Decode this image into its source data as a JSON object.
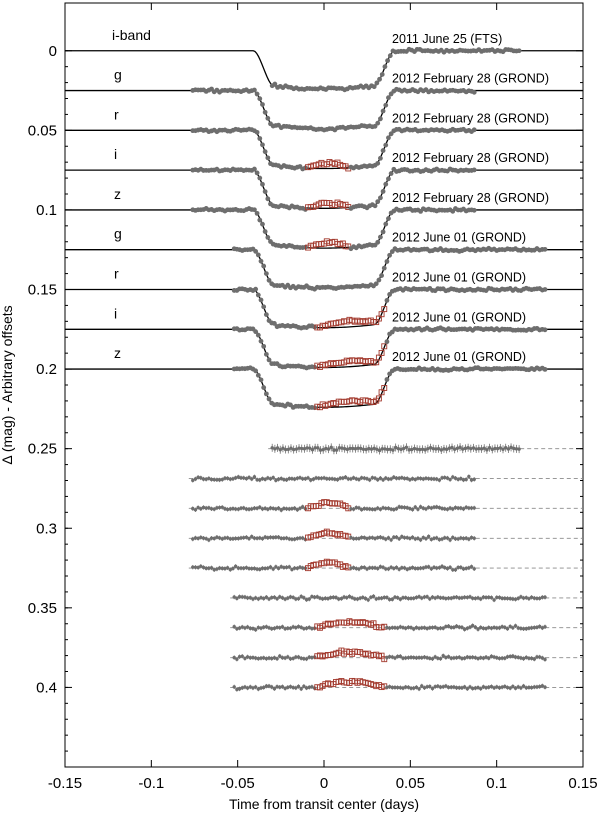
{
  "chart_data": {
    "type": "scatter",
    "title": "",
    "xlabel": "Time from transit center (days)",
    "ylabel": "Δ (mag) - Arbitrary offsets",
    "xlim": [
      -0.15,
      0.15
    ],
    "ylim": [
      0.45,
      -0.03
    ],
    "y_inverted": true,
    "x_ticks": [
      -0.15,
      -0.1,
      -0.05,
      0,
      0.05,
      0.1,
      0.15
    ],
    "x_tick_labels": [
      "-0.15",
      "-0.1",
      "-0.05",
      "0",
      "0.05",
      "0.1",
      "0.15"
    ],
    "y_ticks": [
      0,
      0.05,
      0.1,
      0.15,
      0.2,
      0.25,
      0.3,
      0.35,
      0.4
    ],
    "y_tick_labels": [
      "0",
      "0.05",
      "0.1",
      "0.15",
      "0.2",
      "0.25",
      "0.3",
      "0.35",
      "0.4"
    ],
    "transit": {
      "ingress_start": -0.041,
      "ingress_end": -0.029,
      "egress_start": 0.029,
      "egress_end": 0.041,
      "depth": 0.024
    },
    "colors": {
      "data": "#6e6e6e",
      "spot": "#a33a2e",
      "model": "#000000",
      "residual_line": "#8a8a8a"
    },
    "series": [
      {
        "band": "i-band",
        "observation": "2011 June 25 (FTS)",
        "offset": 0,
        "x_range": [
          -0.03,
          0.113
        ],
        "spot_range": null
      },
      {
        "band": "g",
        "observation": "2012 February 28 (GROND)",
        "offset": 0.025,
        "x_range": [
          -0.076,
          0.087
        ],
        "spot_range": null
      },
      {
        "band": "r",
        "observation": "2012 February 28 (GROND)",
        "offset": 0.05,
        "x_range": [
          -0.076,
          0.087
        ],
        "spot_range": [
          -0.01,
          0.015
        ]
      },
      {
        "band": "i",
        "observation": "2012 February 28 (GROND)",
        "offset": 0.075,
        "x_range": [
          -0.076,
          0.087
        ],
        "spot_range": [
          -0.01,
          0.015
        ]
      },
      {
        "band": "z",
        "observation": "2012 February 28 (GROND)",
        "offset": 0.1,
        "x_range": [
          -0.076,
          0.087
        ],
        "spot_range": [
          -0.01,
          0.015
        ]
      },
      {
        "band": "g",
        "observation": "2012 June 01 (GROND)",
        "offset": 0.125,
        "x_range": [
          -0.052,
          0.128
        ],
        "spot_range": null
      },
      {
        "band": "r",
        "observation": "2012 June 01 (GROND)",
        "offset": 0.15,
        "x_range": [
          -0.052,
          0.128
        ],
        "spot_range": [
          -0.005,
          0.035
        ]
      },
      {
        "band": "i",
        "observation": "2012 June 01 (GROND)",
        "offset": 0.175,
        "x_range": [
          -0.052,
          0.128
        ],
        "spot_range": [
          -0.005,
          0.035
        ]
      },
      {
        "band": "z",
        "observation": "2012 June 01 (GROND)",
        "offset": 0.2,
        "x_range": [
          -0.052,
          0.128
        ],
        "spot_range": [
          -0.005,
          0.035
        ]
      }
    ],
    "residual_offsets": [
      0.25,
      0.2688,
      0.2875,
      0.3063,
      0.325,
      0.3438,
      0.3625,
      0.3813,
      0.4
    ]
  }
}
